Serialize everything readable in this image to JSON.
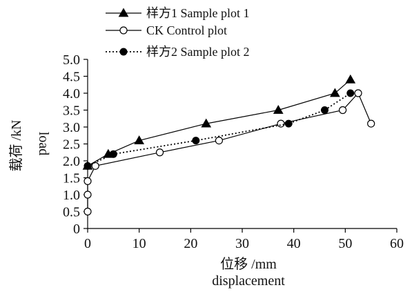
{
  "chart_data": {
    "type": "line",
    "title": "",
    "xlabel": [
      "位移 /mm",
      "displacement"
    ],
    "ylabel": [
      "载荷 /kN",
      "load"
    ],
    "xlim": [
      0,
      60
    ],
    "ylim": [
      0,
      5.0
    ],
    "x_ticks": [
      "0",
      "10",
      "20",
      "30",
      "40",
      "50",
      "60"
    ],
    "y_ticks": [
      "0",
      "0.5",
      "1.0",
      "1.5",
      "2.0",
      "2.5",
      "3.0",
      "3.5",
      "4.0",
      "4.5",
      "5.0"
    ],
    "grid": false,
    "legend_position": "top-left",
    "series": [
      {
        "name": "样方1 Sample plot 1",
        "marker": "triangle-filled",
        "line": "solid",
        "color": "#000000",
        "points": [
          [
            0,
            1.85
          ],
          [
            4,
            2.2
          ],
          [
            10,
            2.6
          ],
          [
            23,
            3.1
          ],
          [
            37,
            3.5
          ],
          [
            48,
            4.0
          ],
          [
            51,
            4.4
          ]
        ]
      },
      {
        "name": "CK Control plot",
        "marker": "circle-open",
        "line": "solid",
        "color": "#000000",
        "points": [
          [
            0,
            0.5
          ],
          [
            0,
            1.0
          ],
          [
            0,
            1.4
          ],
          [
            1.5,
            1.85
          ],
          [
            14,
            2.25
          ],
          [
            25.5,
            2.6
          ],
          [
            37.5,
            3.1
          ],
          [
            49.5,
            3.5
          ],
          [
            52.5,
            4.0
          ],
          [
            55,
            3.1
          ]
        ]
      },
      {
        "name": "样方2 Sample plot 2",
        "marker": "circle-filled",
        "line": "dotted",
        "color": "#000000",
        "points": [
          [
            0,
            1.85
          ],
          [
            5,
            2.2
          ],
          [
            21,
            2.6
          ],
          [
            39,
            3.1
          ],
          [
            46,
            3.5
          ],
          [
            51,
            4.0
          ]
        ]
      }
    ]
  }
}
